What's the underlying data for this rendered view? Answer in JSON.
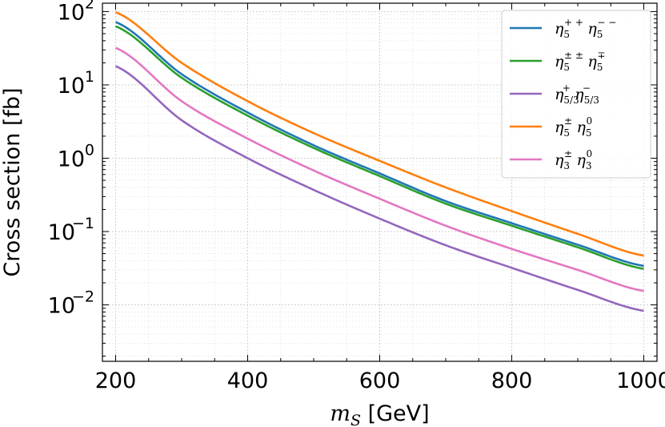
{
  "chart_data": {
    "type": "line",
    "yscale": "log",
    "title": "",
    "xlabel": {
      "symbol": "m",
      "subscript": "S",
      "unit": "[GeV]"
    },
    "ylabel": "Cross section [fb]",
    "xlim": [
      180,
      1020
    ],
    "ylim": [
      0.0017,
      130
    ],
    "xticks": [
      200,
      400,
      600,
      800,
      1000
    ],
    "xtick_labels": [
      "200",
      "400",
      "600",
      "800",
      "1000"
    ],
    "yticks": [
      {
        "value": 100,
        "base": "10",
        "exp": "2"
      },
      {
        "value": 10,
        "base": "10",
        "exp": "1"
      },
      {
        "value": 1,
        "base": "10",
        "exp": "0"
      },
      {
        "value": 0.1,
        "base": "10",
        "exp": "−1"
      },
      {
        "value": 0.01,
        "base": "10",
        "exp": "−2"
      }
    ],
    "grid": true,
    "legend_position": "top-right",
    "x": [
      200,
      300,
      400,
      500,
      600,
      700,
      800,
      900,
      1000
    ],
    "series": [
      {
        "name": "eta5pp_eta5mm",
        "legend": {
          "main": "η",
          "sub": "5",
          "sup": "+ +",
          "main2": "η",
          "sub2": "5",
          "sup2": "− −"
        },
        "color": "#1f77b4",
        "values": [
          72,
          14,
          4.2,
          1.5,
          0.62,
          0.26,
          0.13,
          0.066,
          0.034
        ]
      },
      {
        "name": "eta5pmpm_eta5mp",
        "legend": {
          "main": "η",
          "sub": "5",
          "sup": "± ±",
          "main2": "η",
          "sub2": "5",
          "sup2": "∓"
        },
        "color": "#2ca02c",
        "values": [
          63,
          12.5,
          3.8,
          1.38,
          0.57,
          0.24,
          0.12,
          0.061,
          0.031
        ]
      },
      {
        "name": "eta53p_eta53m",
        "legend": {
          "main": "η",
          "sub": "5/3",
          "sup": "+",
          "main2": "η",
          "sub2": "5/3",
          "sup2": "−"
        },
        "color": "#9467bd",
        "values": [
          18,
          3.3,
          1.0,
          0.37,
          0.15,
          0.065,
          0.032,
          0.016,
          0.0083
        ]
      },
      {
        "name": "eta5pm_eta50",
        "legend": {
          "main": "η",
          "sub": "5",
          "sup": "±",
          "main2": "η",
          "sub2": "5",
          "sup2": "0"
        },
        "color": "#ff7f0e",
        "values": [
          98,
          20,
          6.0,
          2.2,
          0.92,
          0.4,
          0.19,
          0.093,
          0.047
        ]
      },
      {
        "name": "eta3pm_eta30",
        "legend": {
          "main": "η",
          "sub": "3",
          "sup": "±",
          "main2": "η",
          "sub2": "3",
          "sup2": "0"
        },
        "color": "#e377c2",
        "values": [
          32,
          6.0,
          1.85,
          0.68,
          0.28,
          0.12,
          0.058,
          0.03,
          0.0155
        ]
      }
    ]
  }
}
